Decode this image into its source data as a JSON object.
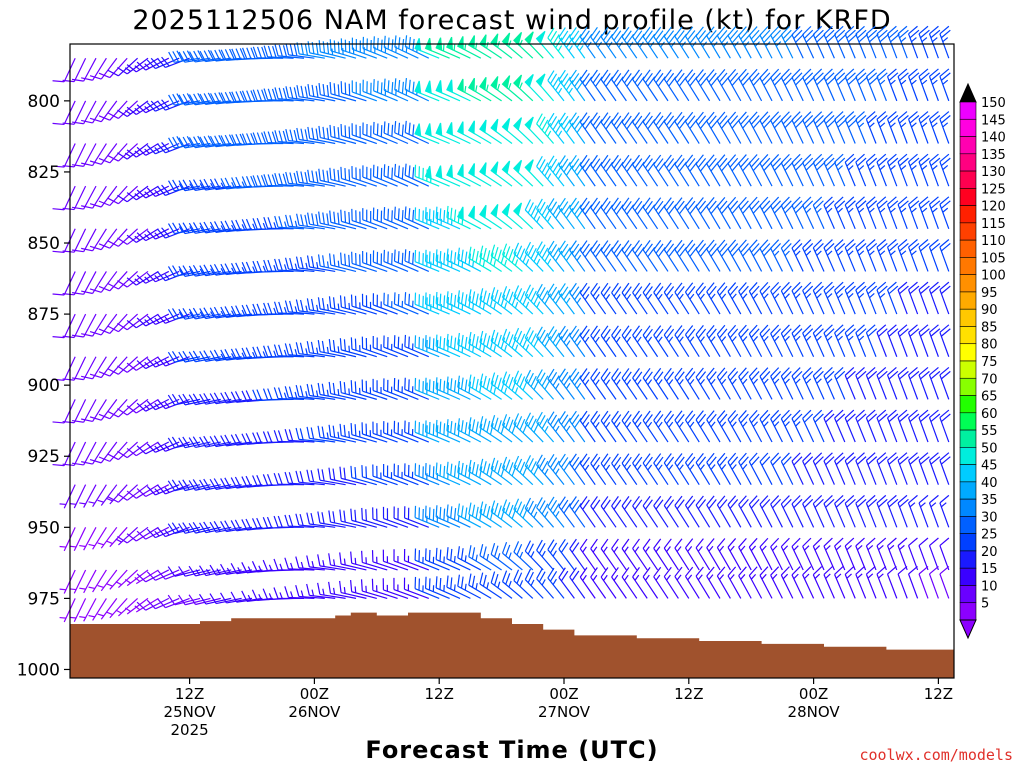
{
  "chart_data": {
    "type": "wind_barb_profile",
    "title": "2025112506 NAM forecast wind profile (kt) for KRFD",
    "xlabel": "Forecast Time (UTC)",
    "ylabel": "",
    "y_axis": {
      "label_values": [
        "800",
        "825",
        "850",
        "875",
        "900",
        "925",
        "950",
        "975",
        "1000"
      ],
      "range": [
        780,
        1003
      ],
      "inverted": true
    },
    "x_axis": {
      "range_hours": [
        -5.5,
        79.5
      ],
      "ticks": [
        {
          "hour": 6,
          "line1": "12Z",
          "line2": "25NOV",
          "line3": "2025"
        },
        {
          "hour": 18,
          "line1": "00Z",
          "line2": "26NOV",
          "line3": ""
        },
        {
          "hour": 30,
          "line1": "12Z",
          "line2": "",
          "line3": ""
        },
        {
          "hour": 42,
          "line1": "00Z",
          "line2": "27NOV",
          "line3": ""
        },
        {
          "hour": 54,
          "line1": "12Z",
          "line2": "",
          "line3": ""
        },
        {
          "hour": 66,
          "line1": "00Z",
          "line2": "28NOV",
          "line3": ""
        },
        {
          "hour": 78,
          "line1": "12Z",
          "line2": "",
          "line3": ""
        }
      ]
    },
    "colorbar": {
      "labels": [
        "5",
        "10",
        "15",
        "20",
        "25",
        "30",
        "35",
        "40",
        "45",
        "50",
        "55",
        "60",
        "65",
        "70",
        "75",
        "80",
        "85",
        "90",
        "95",
        "100",
        "105",
        "110",
        "115",
        "120",
        "125",
        "130",
        "135",
        "140",
        "145",
        "150"
      ],
      "colors": [
        "#8c00ff",
        "#6a00ff",
        "#3a00ff",
        "#1a1aff",
        "#0040ff",
        "#0060ff",
        "#0088ff",
        "#00aaff",
        "#00ccff",
        "#00eedd",
        "#00f0a0",
        "#00ff55",
        "#22ff00",
        "#88ff00",
        "#ccff00",
        "#ffff00",
        "#ffe000",
        "#ffc800",
        "#ffaa00",
        "#ff9000",
        "#ff7800",
        "#ff6000",
        "#ff4000",
        "#ff2000",
        "#ff0020",
        "#ff0050",
        "#ff0080",
        "#ff00b0",
        "#ff00e0",
        "#ee00ff"
      ],
      "top_arrow_color": "#000000",
      "bottom_arrow_color": "#8c00ff"
    },
    "terrain": {
      "color": "#a0522d",
      "surface_pressure": [
        {
          "hour": -5.5,
          "p": 984
        },
        {
          "hour": 3,
          "p": 984
        },
        {
          "hour": 7,
          "p": 983
        },
        {
          "hour": 10,
          "p": 982
        },
        {
          "hour": 17,
          "p": 982
        },
        {
          "hour": 20,
          "p": 981
        },
        {
          "hour": 21.5,
          "p": 980
        },
        {
          "hour": 24,
          "p": 981
        },
        {
          "hour": 27,
          "p": 980
        },
        {
          "hour": 31,
          "p": 980
        },
        {
          "hour": 34,
          "p": 982
        },
        {
          "hour": 37,
          "p": 984
        },
        {
          "hour": 40,
          "p": 986
        },
        {
          "hour": 43,
          "p": 988
        },
        {
          "hour": 49,
          "p": 989
        },
        {
          "hour": 55,
          "p": 990
        },
        {
          "hour": 61,
          "p": 991
        },
        {
          "hour": 67,
          "p": 992
        },
        {
          "hour": 73,
          "p": 993
        },
        {
          "hour": 79.5,
          "p": 994
        }
      ]
    },
    "barb_grid": {
      "time_step_hours": 1,
      "first_hour": -5,
      "last_hour": 79,
      "pressure_levels": [
        785,
        800,
        815,
        830,
        845,
        860,
        875,
        890,
        905,
        920,
        935,
        950,
        965,
        975
      ],
      "note": "wind barbs, speed in kt, direction degrees (from); field approximated from image"
    },
    "wind_regimes": [
      {
        "from_hour": -5,
        "to_hour": 7,
        "speed_kt": [
          5,
          12
        ],
        "direction_deg": [
          200,
          250
        ]
      },
      {
        "from_hour": 7,
        "to_hour": 30,
        "speed_kt": [
          12,
          32
        ],
        "direction_deg": [
          260,
          295
        ]
      },
      {
        "from_hour": 30,
        "to_hour": 45,
        "speed_kt": [
          30,
          55
        ],
        "direction_deg": [
          295,
          330
        ]
      },
      {
        "from_hour": 45,
        "to_hour": 79,
        "speed_kt": [
          15,
          35
        ],
        "direction_deg": [
          320,
          345
        ]
      }
    ]
  },
  "credit": "coolwx.com/models"
}
